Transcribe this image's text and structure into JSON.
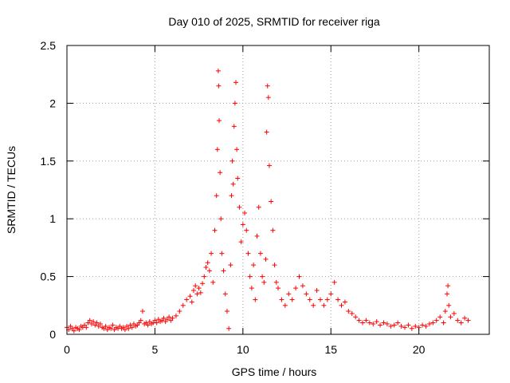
{
  "chart_data": {
    "type": "scatter",
    "title": "Day 010 of 2025, SRMTID for receiver riga",
    "xlabel": "GPS time / hours",
    "ylabel": "SRMTID / TECUs",
    "xlim": [
      0,
      24
    ],
    "ylim": [
      0,
      2.5
    ],
    "xticks": [
      0,
      5,
      10,
      15,
      20
    ],
    "xtick_labels": [
      "0",
      "5",
      "10",
      "15",
      "20"
    ],
    "yticks": [
      0,
      0.5,
      1,
      1.5,
      2,
      2.5
    ],
    "ytick_labels": [
      "0",
      "0.5",
      "1",
      "1.5",
      "2",
      "2.5"
    ],
    "grid": true,
    "marker": "+",
    "color": "#ff0000",
    "series": [
      {
        "name": "SRMTID",
        "points": [
          [
            0.0,
            0.06
          ],
          [
            0.1,
            0.04
          ],
          [
            0.2,
            0.07
          ],
          [
            0.3,
            0.05
          ],
          [
            0.4,
            0.03
          ],
          [
            0.5,
            0.06
          ],
          [
            0.6,
            0.05
          ],
          [
            0.7,
            0.04
          ],
          [
            0.8,
            0.07
          ],
          [
            0.9,
            0.06
          ],
          [
            1.0,
            0.08
          ],
          [
            1.1,
            0.06
          ],
          [
            1.2,
            0.1
          ],
          [
            1.3,
            0.12
          ],
          [
            1.4,
            0.09
          ],
          [
            1.5,
            0.11
          ],
          [
            1.6,
            0.08
          ],
          [
            1.7,
            0.1
          ],
          [
            1.8,
            0.07
          ],
          [
            1.9,
            0.09
          ],
          [
            2.0,
            0.06
          ],
          [
            2.1,
            0.05
          ],
          [
            2.2,
            0.07
          ],
          [
            2.3,
            0.04
          ],
          [
            2.4,
            0.06
          ],
          [
            2.5,
            0.05
          ],
          [
            2.6,
            0.08
          ],
          [
            2.7,
            0.04
          ],
          [
            2.8,
            0.06
          ],
          [
            2.9,
            0.05
          ],
          [
            3.0,
            0.07
          ],
          [
            3.1,
            0.05
          ],
          [
            3.2,
            0.06
          ],
          [
            3.3,
            0.04
          ],
          [
            3.4,
            0.07
          ],
          [
            3.5,
            0.05
          ],
          [
            3.6,
            0.08
          ],
          [
            3.7,
            0.06
          ],
          [
            3.8,
            0.09
          ],
          [
            3.9,
            0.07
          ],
          [
            4.0,
            0.08
          ],
          [
            4.1,
            0.1
          ],
          [
            4.2,
            0.12
          ],
          [
            4.3,
            0.2
          ],
          [
            4.4,
            0.09
          ],
          [
            4.5,
            0.1
          ],
          [
            4.6,
            0.08
          ],
          [
            4.7,
            0.11
          ],
          [
            4.8,
            0.09
          ],
          [
            4.9,
            0.1
          ],
          [
            5.0,
            0.12
          ],
          [
            5.1,
            0.1
          ],
          [
            5.2,
            0.13
          ],
          [
            5.3,
            0.11
          ],
          [
            5.4,
            0.12
          ],
          [
            5.5,
            0.14
          ],
          [
            5.6,
            0.11
          ],
          [
            5.7,
            0.13
          ],
          [
            5.8,
            0.15
          ],
          [
            5.9,
            0.12
          ],
          [
            6.0,
            0.14
          ],
          [
            6.2,
            0.16
          ],
          [
            6.4,
            0.2
          ],
          [
            6.6,
            0.25
          ],
          [
            6.8,
            0.3
          ],
          [
            7.0,
            0.33
          ],
          [
            7.1,
            0.28
          ],
          [
            7.2,
            0.38
          ],
          [
            7.3,
            0.42
          ],
          [
            7.4,
            0.35
          ],
          [
            7.5,
            0.4
          ],
          [
            7.6,
            0.36
          ],
          [
            7.7,
            0.44
          ],
          [
            7.8,
            0.5
          ],
          [
            7.9,
            0.58
          ],
          [
            8.0,
            0.62
          ],
          [
            8.1,
            0.55
          ],
          [
            8.2,
            0.7
          ],
          [
            8.3,
            0.45
          ],
          [
            8.4,
            0.9
          ],
          [
            8.5,
            1.2
          ],
          [
            8.55,
            1.6
          ],
          [
            8.6,
            2.28
          ],
          [
            8.62,
            2.15
          ],
          [
            8.65,
            1.85
          ],
          [
            8.7,
            1.4
          ],
          [
            8.75,
            1.0
          ],
          [
            8.8,
            0.7
          ],
          [
            8.9,
            0.55
          ],
          [
            9.0,
            0.35
          ],
          [
            9.1,
            0.2
          ],
          [
            9.2,
            0.05
          ],
          [
            9.3,
            0.6
          ],
          [
            9.35,
            1.2
          ],
          [
            9.4,
            1.5
          ],
          [
            9.45,
            1.3
          ],
          [
            9.5,
            1.8
          ],
          [
            9.55,
            2.0
          ],
          [
            9.6,
            2.18
          ],
          [
            9.65,
            1.6
          ],
          [
            9.7,
            1.35
          ],
          [
            9.8,
            1.1
          ],
          [
            9.9,
            0.8
          ],
          [
            10.0,
            0.95
          ],
          [
            10.1,
            1.05
          ],
          [
            10.2,
            0.9
          ],
          [
            10.3,
            0.7
          ],
          [
            10.4,
            0.5
          ],
          [
            10.5,
            0.4
          ],
          [
            10.6,
            0.6
          ],
          [
            10.7,
            0.3
          ],
          [
            10.8,
            0.85
          ],
          [
            10.9,
            1.1
          ],
          [
            11.0,
            0.7
          ],
          [
            11.1,
            0.5
          ],
          [
            11.2,
            0.45
          ],
          [
            11.3,
            0.65
          ],
          [
            11.35,
            1.75
          ],
          [
            11.4,
            2.15
          ],
          [
            11.45,
            2.05
          ],
          [
            11.5,
            1.46
          ],
          [
            11.6,
            1.15
          ],
          [
            11.7,
            0.9
          ],
          [
            11.8,
            0.6
          ],
          [
            11.9,
            0.45
          ],
          [
            12.0,
            0.4
          ],
          [
            12.2,
            0.3
          ],
          [
            12.4,
            0.25
          ],
          [
            12.6,
            0.35
          ],
          [
            12.8,
            0.3
          ],
          [
            13.0,
            0.4
          ],
          [
            13.2,
            0.5
          ],
          [
            13.4,
            0.42
          ],
          [
            13.6,
            0.35
          ],
          [
            13.8,
            0.3
          ],
          [
            14.0,
            0.25
          ],
          [
            14.2,
            0.38
          ],
          [
            14.4,
            0.3
          ],
          [
            14.6,
            0.25
          ],
          [
            14.8,
            0.3
          ],
          [
            15.0,
            0.35
          ],
          [
            15.2,
            0.45
          ],
          [
            15.4,
            0.3
          ],
          [
            15.6,
            0.25
          ],
          [
            15.8,
            0.28
          ],
          [
            16.0,
            0.2
          ],
          [
            16.2,
            0.18
          ],
          [
            16.4,
            0.15
          ],
          [
            16.6,
            0.12
          ],
          [
            16.8,
            0.1
          ],
          [
            17.0,
            0.12
          ],
          [
            17.2,
            0.1
          ],
          [
            17.4,
            0.09
          ],
          [
            17.6,
            0.11
          ],
          [
            17.8,
            0.08
          ],
          [
            18.0,
            0.1
          ],
          [
            18.2,
            0.09
          ],
          [
            18.4,
            0.07
          ],
          [
            18.6,
            0.08
          ],
          [
            18.8,
            0.1
          ],
          [
            19.0,
            0.07
          ],
          [
            19.2,
            0.06
          ],
          [
            19.4,
            0.08
          ],
          [
            19.6,
            0.05
          ],
          [
            19.8,
            0.07
          ],
          [
            20.0,
            0.06
          ],
          [
            20.2,
            0.08
          ],
          [
            20.4,
            0.07
          ],
          [
            20.6,
            0.09
          ],
          [
            20.8,
            0.1
          ],
          [
            21.0,
            0.12
          ],
          [
            21.2,
            0.15
          ],
          [
            21.4,
            0.1
          ],
          [
            21.5,
            0.2
          ],
          [
            21.6,
            0.35
          ],
          [
            21.65,
            0.42
          ],
          [
            21.7,
            0.25
          ],
          [
            21.8,
            0.15
          ],
          [
            22.0,
            0.18
          ],
          [
            22.2,
            0.12
          ],
          [
            22.4,
            0.1
          ],
          [
            22.6,
            0.14
          ],
          [
            22.8,
            0.12
          ]
        ]
      }
    ]
  }
}
